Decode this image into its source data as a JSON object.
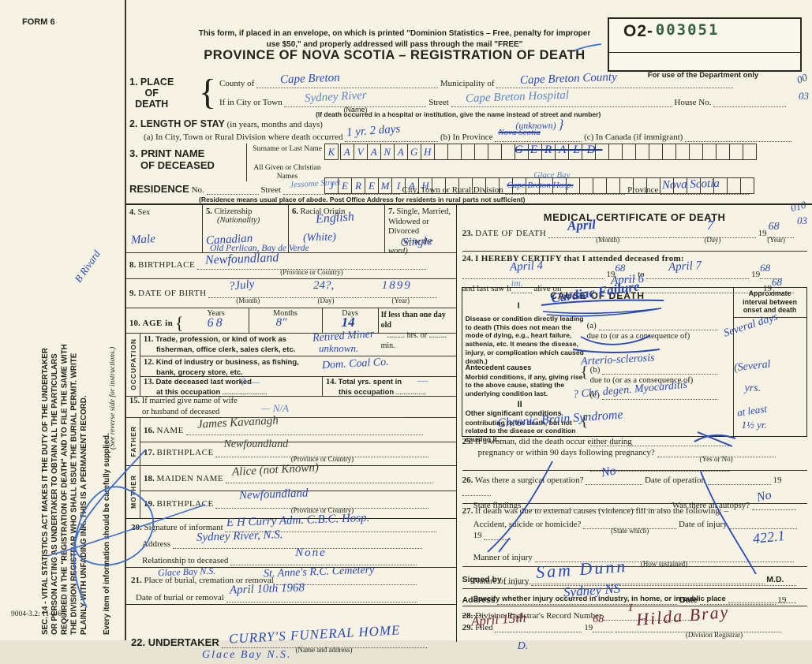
{
  "form": {
    "form_no": "FORM 6",
    "print_code": "9004-3.2: 11-3-65",
    "margin_duty": "SEC. 14 - VITAL STATISTICS ACT MAKES IT THE DUTY OF THE UNDERTAKER OR PERSON ACTING AS UNDERTAKER TO OBTAIN ALL THE PARTICULARS REQUIRED IN THE \"REGISTRATION OF DEATH\" AND TO FILE THE SAME WITH THE DIVISION REGISTRAR WHO SHALL ISSUE THE BURIAL PERMIT. WRITE PLAINLY WITH UNFADING INK. THIS IS A PERMANENT RECORD.",
    "margin_reverse": "(See reverse side for instructions.)",
    "margin_supplied": "Every item of information should be carefully supplied.",
    "margin_signature": "B Rivard"
  },
  "header": {
    "notice_line1": "This form, if placed in an envelope, on which is printed \"Dominion Statistics – Free, penalty for improper",
    "notice_line2": "use $50,\" and properly addressed will pass through the mail \"FREE\"",
    "title": "PROVINCE OF NOVA SCOTIA – REGISTRATION OF DEATH",
    "dept_prefix": "O2-",
    "dept_number": "003051",
    "dept_caption": "For use of the Department only"
  },
  "place": {
    "num": "1.",
    "label1": "PLACE",
    "label2": "OF",
    "label3": "DEATH",
    "county_label": "County of",
    "county_value": "Cape Breton",
    "municipality_label": "Municipality of",
    "municipality_value": "Cape Breton County",
    "city_label": "If in City or Town",
    "city_value": "Sydney River",
    "city_note": "(Name)",
    "street_label": "Street",
    "street_value": "Cape Breton Hospital",
    "house_label": "House No.",
    "hospital_note": "(If death occurred in a hospital or institution, give the name instead of street and number)",
    "margin_code1": "00",
    "margin_code2": "03"
  },
  "stay": {
    "num": "2.",
    "label": "LENGTH OF STAY",
    "label_note": "(in years, months and days)",
    "a_label": "(a) In City, Town or Rural Division where death occurred",
    "a_value": "1 yr. 2 days",
    "b_label": "(b) In Province",
    "b_value": "Nova Scotia",
    "b_above": "(unknown)",
    "c_label": "(c) In Canada (if immigrant)"
  },
  "deceased": {
    "num": "3.",
    "label1": "PRINT NAME",
    "label2": "OF DECEASED",
    "surname_label": "Surname or Last Name",
    "given_label": "All Given or Christian Names",
    "surname_letters": "KAVANAGH",
    "surname_struck": "GERALD",
    "given_letters": "JEREMIAH"
  },
  "residence": {
    "label": "RESIDENCE",
    "no_label": "No.",
    "street_label": "Street",
    "street_value": "Jessome Street",
    "city_label": "City, Town or Rural Division",
    "city_value_struck": "Cape Breton Hosp.",
    "city_value_above": "Glace Bay",
    "province_label": "Province",
    "province_value": "Nova Scotia",
    "note": "(Residence means usual place of abode. Post Office Address for residents in rural parts not sufficient)"
  },
  "personal": {
    "sex_num": "4.",
    "sex_label": "Sex",
    "sex_value": "Male",
    "cit_num": "5.",
    "cit_label": "Citizenship",
    "cit_note": "(Nationality)",
    "cit_value": "Canadian",
    "race_num": "6.",
    "race_label": "Racial Origin",
    "race_value1": "English",
    "race_value2": "(White)",
    "mar_num": "7.",
    "mar_label1": "Single, Married,",
    "mar_label2": "Widowed or Divorced",
    "mar_note": "(write the word)",
    "mar_value": "Single",
    "bp_num": "8.",
    "bp_label": "BIRTHPLACE",
    "bp_above": "Old Perlican, Bay de Verde",
    "bp_value": "Newfoundland",
    "bp_note": "(Province or Country)",
    "dob_num": "9.",
    "dob_label": "DATE OF BIRTH",
    "dob_month": "?July",
    "dob_month_note": "(Month)",
    "dob_day": "24?,",
    "dob_day_note": "(Day)",
    "dob_year": "1899",
    "dob_year_note": "(Year)",
    "age_num": "10.",
    "age_label": "AGE in",
    "age_brace": "{",
    "age_years_label": "Years",
    "age_years": "68",
    "age_months_label": "Months",
    "age_months": "8″",
    "age_days_label": "Days",
    "age_days": "14",
    "age_less_label": "If less than one day old",
    "age_hrs_label": "hrs. or",
    "age_min_label": "min."
  },
  "occupation": {
    "side_label": "OCCUPATION",
    "trade_num": "11.",
    "trade_l1": "Trade, profession, or kind of work as",
    "trade_l2": "fisherman, office clerk, sales clerk, etc.",
    "trade_value1": "Retired Miner",
    "trade_value2": "unknown.",
    "ind_num": "12.",
    "ind_l1": "Kind of industry or business, as fishing,",
    "ind_l2": "bank, grocery store, etc.",
    "ind_value": "Dom. Coal Co.",
    "lw_num": "13.",
    "lw_l1": "Date deceased last worked",
    "lw_l2": "at this occupation",
    "lw_value": "? —",
    "ty_num": "14.",
    "ty_l1": "Total yrs. spent in",
    "ty_l2": "this occupation",
    "ty_value": "—",
    "sp_num": "15.",
    "sp_l1": "If married give name of wife",
    "sp_l2": "or husband of deceased",
    "sp_value": "—      N/A"
  },
  "father": {
    "side_label": "FATHER",
    "name_num": "16.",
    "name_label": "NAME",
    "name_value": "James Kavanagh",
    "bp_num": "17.",
    "bp_label": "BIRTHPLACE",
    "bp_value": "Newfoundland",
    "bp_note": "(Province or Country)"
  },
  "mother": {
    "side_label": "MOTHER",
    "mn_num": "18.",
    "mn_label": "MAIDEN NAME",
    "mn_value": "Alice   (not Known)",
    "bp_num": "19.",
    "bp_label": "BIRTHPLACE",
    "bp_value": "Newfoundland",
    "bp_note": "(Province or Country)"
  },
  "informant": {
    "num": "20.",
    "label": "Signature of informant",
    "value": "E H Curry   Adm. C.B.C. Hosp.",
    "address_label": "Address",
    "address_value": "Sydney River, N.S.",
    "rel_label": "Relationship to deceased",
    "rel_value": "None"
  },
  "burial": {
    "num": "21.",
    "label": "Place of burial, cremation or removal",
    "above": "Glace Bay N.S.",
    "value": "St. Anne's R.C. Cemetery",
    "date_label": "Date of burial or removal",
    "date_value": "April  10th   1968"
  },
  "undertaker": {
    "num": "22.",
    "label": "UNDERTAKER",
    "value": "CURRY'S FUNERAL HOME",
    "value2": "Glace Bay   N.S.",
    "note": "(Name and address)"
  },
  "medical": {
    "title": "MEDICAL CERTIFICATE OF DEATH",
    "margin_code1": "010",
    "margin_code2": "03",
    "dod_num": "23.",
    "dod_label": "DATE OF DEATH",
    "dod_month": "April",
    "dod_month_note": "(Month)",
    "dod_day": "7",
    "dod_day_note": "(Day)",
    "dod_year": "68",
    "dod_year_note": "(Year)",
    "cert_num": "24.",
    "cert_label": "I HEREBY CERTIFY that I attended deceased from:",
    "from_value": "April 4",
    "from_year": "68",
    "to_label": "to",
    "to_value": "April 7",
    "to_year": "68",
    "lastsaw_l1": "and last saw h",
    "lastsaw_fill": "im.",
    "lastsaw_l2": "alive on",
    "lastsaw_value": "April 6",
    "lastsaw_year": "68",
    "year_prefix": "19"
  },
  "cause": {
    "title": "CAUSE OF DEATH",
    "interval_header": "Approximate interval between onset and death",
    "part1": "I",
    "direct_label": "Disease or condition directly leading to death (This does not mean the mode of dying, e.g., heart failure, asthenia, etc. It means the disease, injury, or complication which caused death.)",
    "a_label": "(a)",
    "a_value": "Cardiac Failure",
    "a_interval": "Several days",
    "dueto": "due to (or as a consequence of)",
    "antecedent_label": "Antecedent causes",
    "antecedent_text": "Morbid conditions, if any, giving rise to the above cause, stating the underlying condition last.",
    "b_label": "(b)",
    "b_value": "Arterio-sclerosis",
    "b_interval": "(Several",
    "c_label": "(c)",
    "c_value": "? Chr. degen. Myocarditis",
    "c_interval": "yrs.",
    "part2": "II",
    "other_label": "Other significant conditions",
    "other_text": "contributing to the death, but not related to the disease or condition causing it.",
    "other_value": "Chronic Brain Syndrome",
    "other_interval1": "at least",
    "other_interval2": "1½ yr."
  },
  "q25": {
    "num": "25.",
    "l1": "If a woman, did the death occur either during",
    "l2": "pregnancy or within 90 days following pregnancy?",
    "note": "(Yes or No)"
  },
  "q26": {
    "num": "26.",
    "label": "Was there a surgical operation?",
    "value": "No",
    "date_label": "Date of operation",
    "findings_label": "State findings",
    "autopsy_label": "Was there an autopsy?",
    "autopsy_value": "No",
    "year_prefix": "19"
  },
  "q27": {
    "num": "27.",
    "label": "If death was due to external causes (violence) fill in also the following: –",
    "accident_label": "Accident, suicide or homicide?",
    "state_note": "(State which)",
    "injury_date_label": "Date of injury",
    "year_prefix": "19",
    "code_value": "422.1",
    "manner_label": "Manner of injury",
    "sustained_note": "(How sustained)",
    "nature_label": "Nature of injury",
    "specify_label": "Specify whether injury occurred in industry, in home, or in public place"
  },
  "signed": {
    "label": "Signed by",
    "value": "Sam Dunn",
    "md": "M.D.",
    "address_label": "Address",
    "address_value": "Sydney NS",
    "date_label": "Date",
    "year_prefix": "19"
  },
  "registrar": {
    "num28": "28.",
    "record_label": "Division Registrar's Record Number",
    "record_value": "1",
    "num29": "29.",
    "filed_label": "Filed",
    "filed_date": "April 15th",
    "year_prefix": "19",
    "filed_year": "68",
    "name": "Hilda Bray",
    "note": "(Division Registrar)",
    "extra_mark": "D."
  }
}
